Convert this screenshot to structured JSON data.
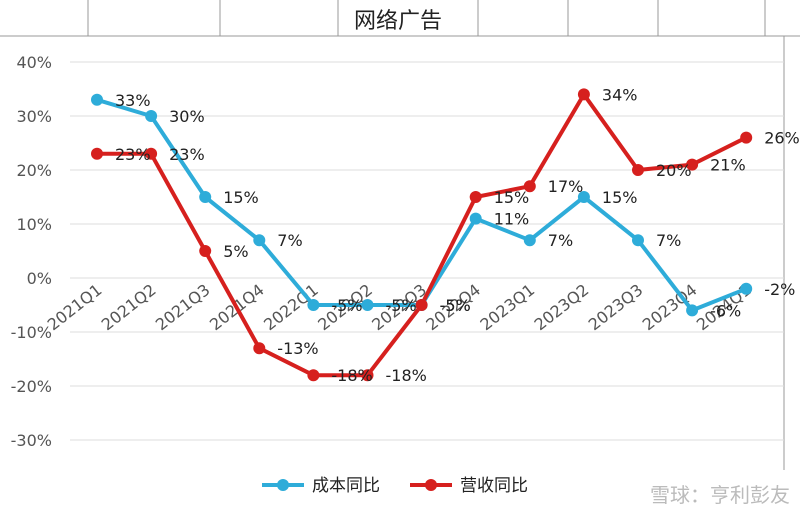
{
  "title": "网络广告",
  "watermark": "雪球：亨利彭友",
  "chart_data": {
    "type": "line",
    "categories": [
      "2021Q1",
      "2021Q2",
      "2021Q3",
      "2021Q4",
      "2022Q1",
      "2022Q2",
      "2022Q3",
      "2022Q4",
      "2023Q1",
      "2023Q2",
      "2023Q3",
      "2023Q4",
      "2024Q1"
    ],
    "series": [
      {
        "name": "成本同比",
        "color": "#2eacd9",
        "values": [
          33,
          30,
          15,
          7,
          -5,
          -5,
          -5,
          11,
          7,
          15,
          7,
          -6,
          -2
        ],
        "labels": [
          "33%",
          "30%",
          "15%",
          "7%",
          "-5%",
          "-5%",
          "-5%",
          "11%",
          "7%",
          "15%",
          "7%",
          "-6%",
          "-2%"
        ]
      },
      {
        "name": "营收同比",
        "color": "#d6201e",
        "values": [
          23,
          23,
          5,
          -13,
          -18,
          -18,
          -5,
          15,
          17,
          34,
          20,
          21,
          26
        ],
        "labels": [
          "23%",
          "23%",
          "5%",
          "-13%",
          "-18%",
          "-18%",
          "-5%",
          "15%",
          "17%",
          "34%",
          "20%",
          "21%",
          "26%"
        ]
      }
    ],
    "yticks": [
      "40%",
      "30%",
      "20%",
      "10%",
      "0%",
      "-10%",
      "-20%",
      "-30%"
    ],
    "ylim": [
      -30,
      40
    ],
    "grid": true,
    "legend": "bottom"
  }
}
